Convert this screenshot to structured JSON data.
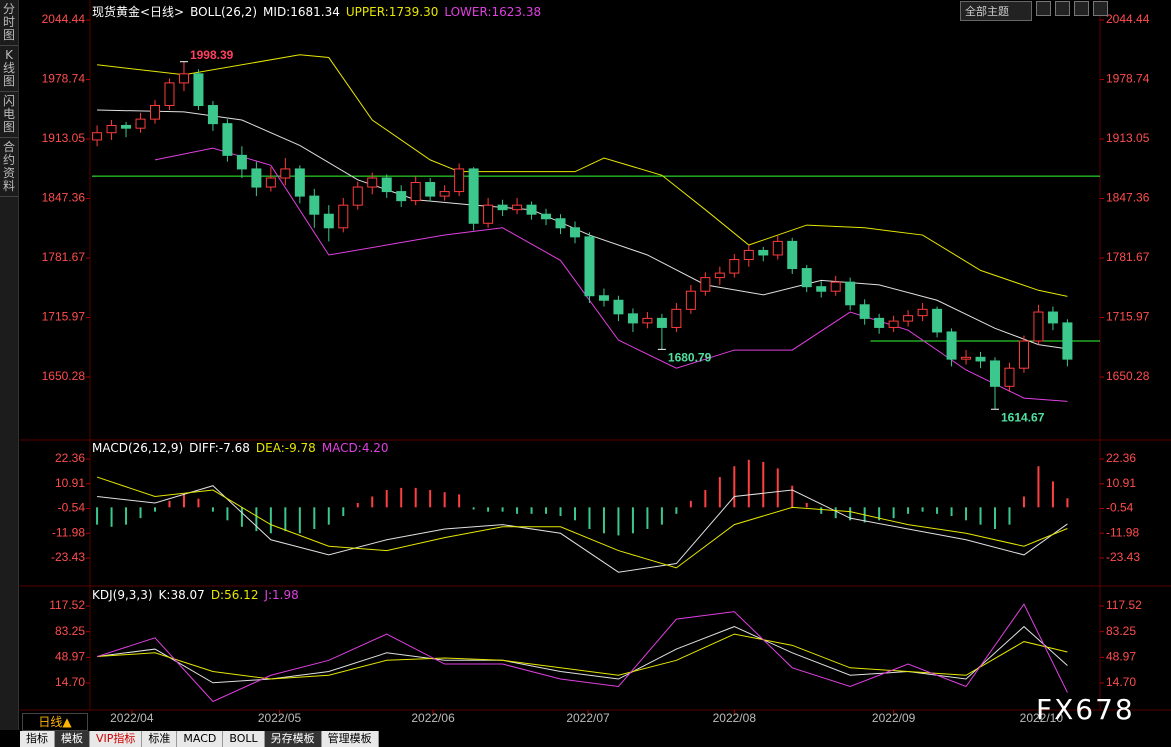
{
  "ui": {
    "sidebar": [
      "分时图",
      "K线图",
      "闪电图",
      "合约资料"
    ],
    "toolbar": "全部主题",
    "period": "日线▲",
    "tabs": [
      "指标",
      "模板",
      "VIP指标",
      "标准",
      "MACD",
      "BOLL",
      "另存模板",
      "管理模板"
    ],
    "watermark": "FX678"
  },
  "chart_data": [
    {
      "type": "candlestick",
      "title": "现货黄金<日线>",
      "indicator": "BOLL(26,2)",
      "up_color": "#ff3c3c",
      "down_color": "#3cc88c",
      "xlim": [
        -0.35,
        69.25
      ],
      "ylim": [
        1584.03,
        2053.27
      ],
      "yticks": [
        2044.44,
        1978.74,
        1913.05,
        1847.36,
        1781.67,
        1715.97,
        1650.28
      ],
      "candles": [
        [
          1912,
          1928,
          1905,
          1920
        ],
        [
          1920,
          1934,
          1912,
          1928
        ],
        [
          1928,
          1932,
          1915,
          1925
        ],
        [
          1925,
          1942,
          1920,
          1935
        ],
        [
          1935,
          1956,
          1930,
          1950
        ],
        [
          1950,
          1980,
          1945,
          1975
        ],
        [
          1975,
          1998.39,
          1966,
          1985
        ],
        [
          1985,
          1990,
          1945,
          1950
        ],
        [
          1950,
          1955,
          1922,
          1930
        ],
        [
          1930,
          1935,
          1888,
          1895
        ],
        [
          1895,
          1905,
          1870,
          1880
        ],
        [
          1880,
          1888,
          1850,
          1860
        ],
        [
          1860,
          1882,
          1855,
          1870
        ],
        [
          1870,
          1892,
          1862,
          1880
        ],
        [
          1880,
          1884,
          1842,
          1850
        ],
        [
          1850,
          1858,
          1815,
          1830
        ],
        [
          1830,
          1840,
          1800,
          1815
        ],
        [
          1815,
          1848,
          1810,
          1840
        ],
        [
          1840,
          1866,
          1835,
          1860
        ],
        [
          1860,
          1876,
          1852,
          1870
        ],
        [
          1870,
          1874,
          1848,
          1855
        ],
        [
          1855,
          1862,
          1838,
          1845
        ],
        [
          1845,
          1872,
          1840,
          1865
        ],
        [
          1865,
          1870,
          1844,
          1850
        ],
        [
          1850,
          1862,
          1845,
          1855
        ],
        [
          1855,
          1886,
          1850,
          1880
        ],
        [
          1880,
          1882,
          1812,
          1820
        ],
        [
          1820,
          1848,
          1815,
          1840
        ],
        [
          1840,
          1846,
          1828,
          1835
        ],
        [
          1835,
          1848,
          1830,
          1840
        ],
        [
          1840,
          1844,
          1824,
          1830
        ],
        [
          1830,
          1836,
          1818,
          1825
        ],
        [
          1825,
          1830,
          1808,
          1815
        ],
        [
          1815,
          1822,
          1798,
          1805
        ],
        [
          1805,
          1810,
          1732,
          1740
        ],
        [
          1740,
          1748,
          1728,
          1735
        ],
        [
          1735,
          1740,
          1712,
          1720
        ],
        [
          1720,
          1726,
          1700,
          1710
        ],
        [
          1710,
          1722,
          1704,
          1715
        ],
        [
          1715,
          1720,
          1680.79,
          1705
        ],
        [
          1705,
          1732,
          1700,
          1725
        ],
        [
          1725,
          1752,
          1720,
          1745
        ],
        [
          1745,
          1766,
          1740,
          1760
        ],
        [
          1760,
          1772,
          1752,
          1765
        ],
        [
          1765,
          1786,
          1760,
          1780
        ],
        [
          1780,
          1796,
          1772,
          1790
        ],
        [
          1790,
          1794,
          1778,
          1785
        ],
        [
          1785,
          1806,
          1780,
          1800
        ],
        [
          1800,
          1804,
          1764,
          1770
        ],
        [
          1770,
          1774,
          1744,
          1750
        ],
        [
          1750,
          1756,
          1738,
          1745
        ],
        [
          1745,
          1762,
          1740,
          1755
        ],
        [
          1755,
          1760,
          1724,
          1730
        ],
        [
          1730,
          1736,
          1708,
          1715
        ],
        [
          1715,
          1720,
          1698,
          1705
        ],
        [
          1705,
          1718,
          1700,
          1712
        ],
        [
          1712,
          1724,
          1706,
          1718
        ],
        [
          1718,
          1732,
          1712,
          1725
        ],
        [
          1725,
          1728,
          1694,
          1700
        ],
        [
          1700,
          1704,
          1662,
          1670
        ],
        [
          1670,
          1680,
          1664,
          1672
        ],
        [
          1672,
          1678,
          1660,
          1668
        ],
        [
          1668,
          1672,
          1614.67,
          1640
        ],
        [
          1640,
          1666,
          1634,
          1660
        ],
        [
          1660,
          1696,
          1655,
          1690
        ],
        [
          1690,
          1730,
          1686,
          1722
        ],
        [
          1722,
          1728,
          1702,
          1710
        ],
        [
          1710,
          1714,
          1662,
          1670
        ]
      ],
      "series": [
        {
          "name": "MID:1681.34",
          "color": "#e0e0e0",
          "x": [
            0,
            6,
            10,
            14,
            18,
            22,
            26,
            30,
            34,
            38,
            42,
            46,
            50,
            54,
            58,
            62,
            65,
            67
          ],
          "values": [
            1945,
            1943,
            1934,
            1906,
            1868,
            1846,
            1840,
            1835,
            1807,
            1785,
            1752,
            1741,
            1757,
            1752,
            1735,
            1704,
            1686,
            1681.34
          ]
        },
        {
          "name": "UPPER:1739.30",
          "color": "#e6e600",
          "x": [
            0,
            6,
            14,
            16,
            19,
            23,
            25,
            33,
            35,
            39,
            42,
            45,
            49,
            53,
            57,
            61,
            65,
            67
          ],
          "values": [
            1995,
            1984,
            2006,
            2003,
            1934,
            1890,
            1877,
            1877,
            1892,
            1873,
            1835,
            1796,
            1818,
            1815,
            1807,
            1768,
            1746,
            1739.3
          ]
        },
        {
          "name": "LOWER:1623.38",
          "color": "#e040e0",
          "x": [
            4,
            8,
            12,
            16,
            20,
            24,
            28,
            32,
            36,
            40,
            44,
            48,
            52,
            56,
            60,
            64,
            67
          ],
          "values": [
            1890,
            1903,
            1884,
            1785,
            1796,
            1807,
            1815,
            1779,
            1691,
            1660,
            1680,
            1680,
            1722,
            1702,
            1658,
            1627,
            1623.38
          ]
        }
      ],
      "hlines": [
        {
          "value": 1872,
          "from": -0.35,
          "color": "#33ff33"
        },
        {
          "value": 1690,
          "from": 53.4,
          "color": "#33ff33"
        }
      ],
      "annotations": [
        {
          "label": "1998.39",
          "value": 1998.39,
          "x": 6,
          "color": "#ff4060"
        },
        {
          "label": "1680.79",
          "value": 1680.79,
          "x": 39,
          "color": "#50e0a0"
        },
        {
          "label": "1614.67",
          "value": 1614.67,
          "x": 62,
          "color": "#50e0a0"
        }
      ]
    },
    {
      "type": "bar",
      "title": "MACD(26,12,9)",
      "name": "MACD:4.20",
      "up_color": "#ff4040",
      "down_color": "#3cc88c",
      "xlim": [
        -0.35,
        69.25
      ],
      "ylim": [
        -35.46,
        26.52
      ],
      "yticks": [
        22.36,
        10.91,
        -0.54,
        -11.98,
        -23.43
      ],
      "values": [
        -8,
        -9,
        -8,
        -5,
        -2,
        3,
        6,
        4,
        -2,
        -6,
        -9,
        -11,
        -12,
        -11,
        -12,
        -10,
        -8,
        -4,
        2,
        5,
        8,
        9,
        9,
        8,
        7,
        6,
        -1,
        -2,
        -2,
        -3,
        -3,
        -3,
        -4,
        -6,
        -10,
        -12,
        -13,
        -12,
        -10,
        -8,
        -3,
        3,
        8,
        14,
        19,
        22,
        21,
        18,
        10,
        2,
        -3,
        -5,
        -6,
        -7,
        -6,
        -5,
        -3,
        -2,
        -3,
        -4,
        -6,
        -8,
        -10,
        -8,
        5,
        19,
        12,
        4.2
      ],
      "series": [
        {
          "name": "DIFF:-7.68",
          "color": "#e0e0e0",
          "x": [
            0,
            4,
            8,
            12,
            16,
            20,
            24,
            28,
            32,
            36,
            40,
            44,
            48,
            52,
            56,
            60,
            64,
            67
          ],
          "values": [
            5,
            2,
            10,
            -15,
            -22,
            -15,
            -10,
            -8,
            -12,
            -30,
            -26,
            5,
            8,
            -5,
            -10,
            -15,
            -22,
            -7.68
          ]
        },
        {
          "name": "DEA:-9.78",
          "color": "#e6e600",
          "x": [
            0,
            4,
            8,
            12,
            16,
            20,
            24,
            28,
            32,
            36,
            40,
            44,
            48,
            52,
            56,
            60,
            64,
            67
          ],
          "values": [
            14,
            5,
            8,
            -8,
            -18,
            -20,
            -14,
            -9,
            -9,
            -20,
            -28,
            -8,
            0,
            -2,
            -8,
            -12,
            -18,
            -9.78
          ]
        }
      ]
    },
    {
      "type": "line",
      "title": "KDJ(9,3,3)",
      "xlim": [
        -0.35,
        69.25
      ],
      "ylim": [
        -18.7,
        136.21
      ],
      "yticks": [
        117.52,
        83.25,
        48.97,
        {
          "value": 14.7,
          "label": "14.70"
        }
      ],
      "xticks": [
        {
          "value": 2.4,
          "label": "2022/04"
        },
        {
          "value": 12.6,
          "label": "2022/05"
        },
        {
          "value": 23.2,
          "label": "2022/06"
        },
        {
          "value": 33.9,
          "label": "2022/07"
        },
        {
          "value": 44.0,
          "label": "2022/08"
        },
        {
          "value": 55.0,
          "label": "2022/09"
        },
        {
          "value": 65.2,
          "label": "2022/10"
        }
      ],
      "series": [
        {
          "name": "K:38.07",
          "color": "#e0e0e0",
          "x": [
            0,
            4,
            8,
            12,
            16,
            20,
            24,
            28,
            32,
            36,
            40,
            44,
            48,
            52,
            56,
            60,
            64,
            67
          ],
          "values": [
            50,
            60,
            15,
            20,
            30,
            55,
            45,
            45,
            30,
            20,
            60,
            90,
            55,
            25,
            30,
            20,
            90,
            38.07
          ]
        },
        {
          "name": "D:56.12",
          "color": "#e6e600",
          "x": [
            0,
            4,
            8,
            12,
            16,
            20,
            24,
            28,
            32,
            36,
            40,
            44,
            48,
            52,
            56,
            60,
            64,
            67
          ],
          "values": [
            50,
            55,
            30,
            20,
            25,
            45,
            48,
            45,
            35,
            25,
            45,
            80,
            65,
            35,
            30,
            25,
            70,
            56.12
          ]
        },
        {
          "name": "J:1.98",
          "color": "#e040e0",
          "x": [
            0,
            4,
            8,
            12,
            16,
            20,
            24,
            28,
            32,
            36,
            40,
            44,
            48,
            52,
            56,
            60,
            64,
            67
          ],
          "values": [
            50,
            75,
            -10,
            25,
            45,
            80,
            40,
            40,
            20,
            10,
            100,
            110,
            35,
            10,
            40,
            10,
            120,
            1.98
          ]
        }
      ]
    }
  ]
}
